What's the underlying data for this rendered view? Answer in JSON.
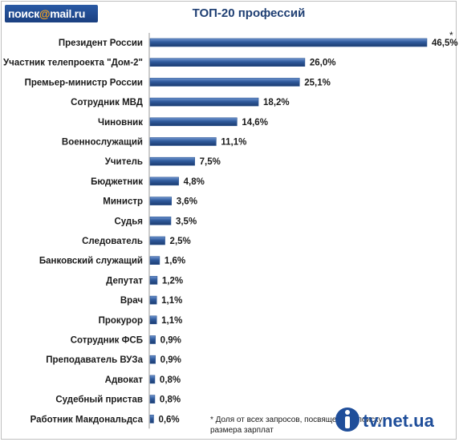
{
  "logo": {
    "text_main": "поиск",
    "text_at": "@",
    "text_end": "mail.ru"
  },
  "chart_data": {
    "type": "bar",
    "orientation": "horizontal",
    "title": "ТОП-20 профессий",
    "categories": [
      "Президент России",
      "Участник телепроекта  \"Дом-2\"",
      "Премьер-министр России",
      "Сотрудник МВД",
      "Чиновник",
      "Военнослужащий",
      "Учитель",
      "Бюджетник",
      "Министр",
      "Судья",
      "Следователь",
      "Банковский служащий",
      "Депутат",
      "Врач",
      "Прокурор",
      "Сотрудник  ФСБ",
      "Преподаватель  ВУЗа",
      "Адвокат",
      "Судебный пристав",
      "Работник Макдональдса"
    ],
    "values": [
      46.5,
      26.0,
      25.1,
      18.2,
      14.6,
      11.1,
      7.5,
      4.8,
      3.6,
      3.5,
      2.5,
      1.6,
      1.2,
      1.1,
      1.1,
      0.9,
      0.9,
      0.8,
      0.8,
      0.6
    ],
    "value_labels": [
      "46,5%",
      "26,0%",
      "25,1%",
      "18,2%",
      "14,6%",
      "11,1%",
      "7,5%",
      "4,8%",
      "3,6%",
      "3,5%",
      "2,5%",
      "1,6%",
      "1,2%",
      "1,1%",
      "1,1%",
      "0,9%",
      "0,9%",
      "0,8%",
      "0,8%",
      "0,6%"
    ],
    "xlim": [
      0,
      46.5
    ],
    "grid": false,
    "legend": "none",
    "bar_color": "#2c5593",
    "annotation_star": "*",
    "footnote": "* Доля от всех запросов, посвященных поиску размера зарплат"
  },
  "watermark": {
    "text": "tv.net.ua"
  }
}
